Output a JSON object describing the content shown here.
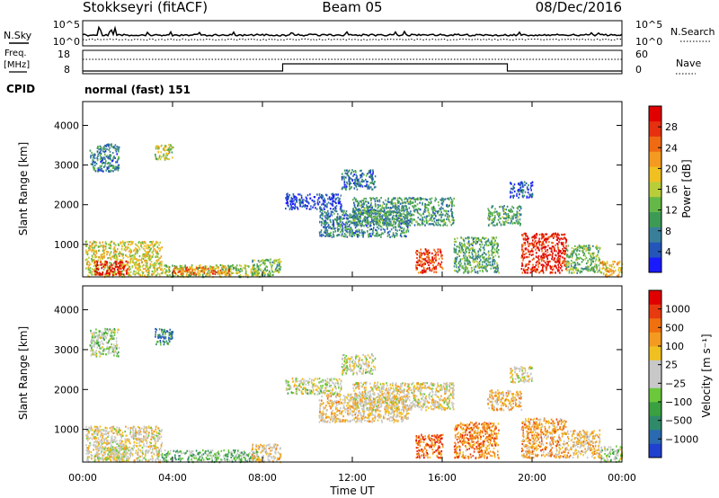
{
  "header": {
    "station": "Stokkseyri (fitACF)",
    "beam": "Beam 05",
    "date": "08/Dec/2016"
  },
  "panels": {
    "nsky_label": "N.Sky",
    "nsearch_label": "N.Search",
    "freq_label": "Freq.",
    "freq_unit": "[MHz]",
    "nave_label": "Nave",
    "cpid_label": "CPID",
    "cpid_text": "normal (fast) 151",
    "noise_left_ticks": [
      "10^5",
      "10^0"
    ],
    "noise_right_ticks": [
      "10^5",
      "10^0"
    ],
    "freq_left_ticks": [
      "18",
      "8"
    ],
    "freq_right_ticks": [
      "60",
      "0"
    ]
  },
  "chart_data": [
    {
      "type": "heatmap",
      "name": "Power",
      "ylabel": "Slant Range [km]",
      "xlabel": "Time UT",
      "x_ticks": [
        "00:00",
        "04:00",
        "08:00",
        "12:00",
        "16:00",
        "20:00",
        "00:00"
      ],
      "y_ticks": [
        "1000",
        "2000",
        "3000",
        "4000"
      ],
      "ylim": [
        180,
        4600
      ],
      "xlim_hours": [
        0,
        24
      ],
      "colorbar": {
        "label": "Power [dB]",
        "ticks": [
          "4",
          "8",
          "12",
          "16",
          "20",
          "24",
          "28"
        ],
        "colors": [
          "#1a1aff",
          "#2356b8",
          "#3a7f9a",
          "#3d9a55",
          "#64b848",
          "#b9cd3a",
          "#f0c020",
          "#f59a20",
          "#f06a14",
          "#e63010",
          "#e00000"
        ]
      },
      "regions": [
        {
          "t0": 0.1,
          "t1": 3.5,
          "r0": 200,
          "r1": 1100,
          "level": 0.55
        },
        {
          "t0": 0.5,
          "t1": 2.0,
          "r0": 250,
          "r1": 600,
          "level": 0.95
        },
        {
          "t0": 0.3,
          "t1": 1.6,
          "r0": 2850,
          "r1": 3550,
          "level": 0.25
        },
        {
          "t0": 3.2,
          "t1": 4.0,
          "r0": 3150,
          "r1": 3550,
          "level": 0.5
        },
        {
          "t0": 3.5,
          "t1": 7.8,
          "r0": 200,
          "r1": 500,
          "level": 0.45
        },
        {
          "t0": 4.0,
          "t1": 6.5,
          "r0": 250,
          "r1": 450,
          "level": 0.75
        },
        {
          "t0": 7.5,
          "t1": 8.8,
          "r0": 200,
          "r1": 650,
          "level": 0.4
        },
        {
          "t0": 9.0,
          "t1": 11.5,
          "r0": 1900,
          "r1": 2300,
          "level": 0.1
        },
        {
          "t0": 10.5,
          "t1": 14.5,
          "r0": 1200,
          "r1": 1900,
          "level": 0.25
        },
        {
          "t0": 12.0,
          "t1": 16.5,
          "r0": 1500,
          "r1": 2200,
          "level": 0.3
        },
        {
          "t0": 11.5,
          "t1": 13.0,
          "r0": 2400,
          "r1": 2900,
          "level": 0.2
        },
        {
          "t0": 14.8,
          "t1": 16.0,
          "r0": 300,
          "r1": 900,
          "level": 0.85
        },
        {
          "t0": 16.5,
          "t1": 18.5,
          "r0": 300,
          "r1": 1200,
          "level": 0.35
        },
        {
          "t0": 18.0,
          "t1": 19.5,
          "r0": 1500,
          "r1": 2000,
          "level": 0.35
        },
        {
          "t0": 19.0,
          "t1": 20.0,
          "r0": 2200,
          "r1": 2600,
          "level": 0.15
        },
        {
          "t0": 19.5,
          "t1": 21.5,
          "r0": 300,
          "r1": 1300,
          "level": 0.9
        },
        {
          "t0": 21.5,
          "t1": 23.0,
          "r0": 300,
          "r1": 1000,
          "level": 0.4
        },
        {
          "t0": 23.0,
          "t1": 24.0,
          "r0": 200,
          "r1": 600,
          "level": 0.6
        }
      ]
    },
    {
      "type": "heatmap",
      "name": "Velocity",
      "ylabel": "Slant Range [km]",
      "xlabel": "Time UT",
      "x_ticks": [
        "00:00",
        "04:00",
        "08:00",
        "12:00",
        "16:00",
        "20:00",
        "00:00"
      ],
      "y_ticks": [
        "1000",
        "2000",
        "3000",
        "4000"
      ],
      "ylim": [
        180,
        4600
      ],
      "xlim_hours": [
        0,
        24
      ],
      "colorbar": {
        "label": "Velocity [m s⁻¹]",
        "ticks": [
          "1000",
          "500",
          "100",
          "25",
          "−25",
          "−100",
          "−500",
          "−1000"
        ],
        "colors": [
          "#2040d0",
          "#2a6ab0",
          "#2f8a6a",
          "#3aa040",
          "#6ac83a",
          "#c8c8c8",
          "#c8c8c8",
          "#f0c020",
          "#f59a20",
          "#f07010",
          "#e83a10",
          "#e00000"
        ]
      },
      "regions": [
        {
          "t0": 0.1,
          "t1": 3.5,
          "r0": 200,
          "r1": 1100,
          "level": 0.55
        },
        {
          "t0": 0.5,
          "t1": 2.0,
          "r0": 250,
          "r1": 600,
          "level": 0.5
        },
        {
          "t0": 0.3,
          "t1": 1.6,
          "r0": 2850,
          "r1": 3550,
          "level": 0.45
        },
        {
          "t0": 3.2,
          "t1": 4.0,
          "r0": 3150,
          "r1": 3550,
          "level": 0.2
        },
        {
          "t0": 3.5,
          "t1": 7.8,
          "r0": 200,
          "r1": 500,
          "level": 0.35
        },
        {
          "t0": 7.5,
          "t1": 8.8,
          "r0": 200,
          "r1": 650,
          "level": 0.6
        },
        {
          "t0": 9.0,
          "t1": 11.5,
          "r0": 1900,
          "r1": 2300,
          "level": 0.5
        },
        {
          "t0": 10.5,
          "t1": 14.5,
          "r0": 1200,
          "r1": 1900,
          "level": 0.6
        },
        {
          "t0": 12.0,
          "t1": 16.5,
          "r0": 1500,
          "r1": 2200,
          "level": 0.55
        },
        {
          "t0": 11.5,
          "t1": 13.0,
          "r0": 2400,
          "r1": 2900,
          "level": 0.5
        },
        {
          "t0": 14.8,
          "t1": 16.0,
          "r0": 300,
          "r1": 900,
          "level": 0.8
        },
        {
          "t0": 16.5,
          "t1": 18.5,
          "r0": 300,
          "r1": 1200,
          "level": 0.75
        },
        {
          "t0": 18.0,
          "t1": 19.5,
          "r0": 1500,
          "r1": 2000,
          "level": 0.65
        },
        {
          "t0": 19.0,
          "t1": 20.0,
          "r0": 2200,
          "r1": 2600,
          "level": 0.55
        },
        {
          "t0": 19.5,
          "t1": 21.5,
          "r0": 300,
          "r1": 1300,
          "level": 0.7
        },
        {
          "t0": 21.5,
          "t1": 23.0,
          "r0": 300,
          "r1": 1000,
          "level": 0.6
        },
        {
          "t0": 23.0,
          "t1": 24.0,
          "r0": 200,
          "r1": 600,
          "level": 0.45
        }
      ]
    }
  ]
}
